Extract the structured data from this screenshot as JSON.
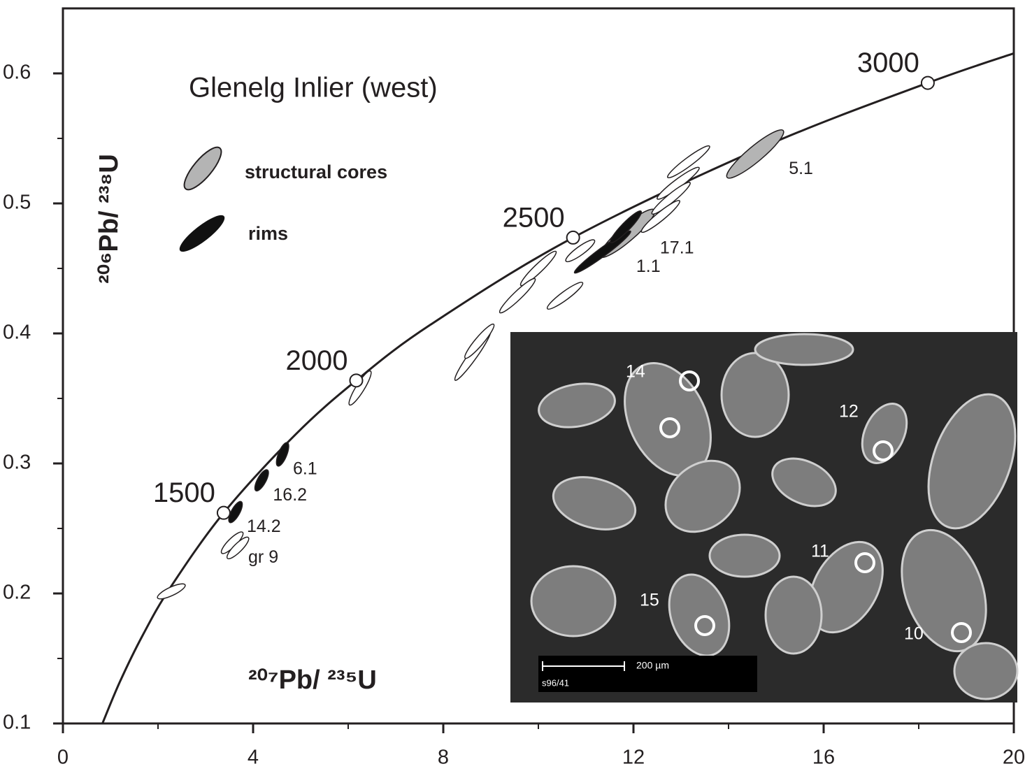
{
  "chart_data": {
    "type": "concordia",
    "title": "Glenelg Inlier (west)",
    "xlabel": "²⁰⁷Pb/ ²³⁵U",
    "ylabel": "²⁰⁶Pb/ ²³⁸U",
    "xlim": [
      0,
      20
    ],
    "ylim": [
      0.1,
      0.65
    ],
    "xticks": [
      0,
      4,
      8,
      12,
      16,
      20
    ],
    "xminor": [
      2,
      6,
      10,
      14,
      18
    ],
    "yticks": [
      0.1,
      0.2,
      0.3,
      0.4,
      0.5,
      0.6
    ],
    "yminor": [
      0.15,
      0.25,
      0.35,
      0.45,
      0.55
    ],
    "curve": {
      "x": [
        0.831,
        1.1988,
        1.6774,
        2.2604,
        3.381,
        4.887,
        6.169,
        7.73,
        10.73,
        14.76,
        18.19,
        20.0
      ],
      "y": [
        0.1,
        0.1321,
        0.1678,
        0.2046,
        0.262,
        0.3221,
        0.3638,
        0.4067,
        0.4737,
        0.5439,
        0.5927,
        0.6154
      ]
    },
    "age_markers": [
      {
        "age": 1500,
        "x": 3.381,
        "y": 0.262
      },
      {
        "age": 2000,
        "x": 6.169,
        "y": 0.3638
      },
      {
        "age": 2500,
        "x": 10.73,
        "y": 0.4737
      },
      {
        "age": 3000,
        "x": 18.19,
        "y": 0.5927
      }
    ],
    "series": [
      {
        "name": "structural cores",
        "color": "#b4b4b4",
        "x": [
          14.56,
          11.87
        ],
        "y": [
          0.538,
          0.477
        ],
        "x_err": [
          0.59,
          0.57
        ],
        "y_err": [
          0.018,
          0.018
        ],
        "labels": [
          "5.1",
          "17.1"
        ]
      },
      {
        "name": "rims",
        "color": "#111111",
        "x": [
          11.35,
          11.84,
          4.62,
          4.18,
          3.63
        ],
        "y": [
          0.4626,
          0.482,
          0.307,
          0.287,
          0.2626
        ],
        "x_err": [
          0.59,
          0.32,
          0.1,
          0.12,
          0.12
        ],
        "y_err": [
          0.016,
          0.012,
          0.009,
          0.008,
          0.008
        ],
        "labels": [
          "1.1",
          null,
          "6.1",
          "16.2",
          "14.2"
        ]
      },
      {
        "color": "#ffffff",
        "x": [
          13.16,
          12.94,
          12.79,
          12.57,
          10.0,
          9.56,
          10.56,
          10.88,
          8.62,
          8.76,
          6.25,
          3.56,
          3.68,
          2.28
        ],
        "y": [
          0.532,
          0.5155,
          0.504,
          0.49,
          0.45,
          0.429,
          0.429,
          0.4636,
          0.383,
          0.394,
          0.358,
          0.239,
          0.235,
          0.2016
        ],
        "x_err": [
          0.44,
          0.44,
          0.4,
          0.4,
          0.37,
          0.37,
          0.37,
          0.3,
          0.37,
          0.3,
          0.22,
          0.22,
          0.22,
          0.29
        ],
        "y_err": [
          0.012,
          0.012,
          0.012,
          0.012,
          0.013,
          0.013,
          0.01,
          0.008,
          0.019,
          0.013,
          0.013,
          0.008,
          0.008,
          0.005
        ],
        "labels": [
          null,
          null,
          null,
          null,
          null,
          null,
          null,
          null,
          null,
          null,
          null,
          "gr 9",
          null,
          null
        ]
      }
    ],
    "inset": {
      "grain_labels": [
        "14",
        "12",
        "11",
        "15",
        "10"
      ],
      "scale_label": "200 µm",
      "sample_label": "s96/41"
    }
  }
}
